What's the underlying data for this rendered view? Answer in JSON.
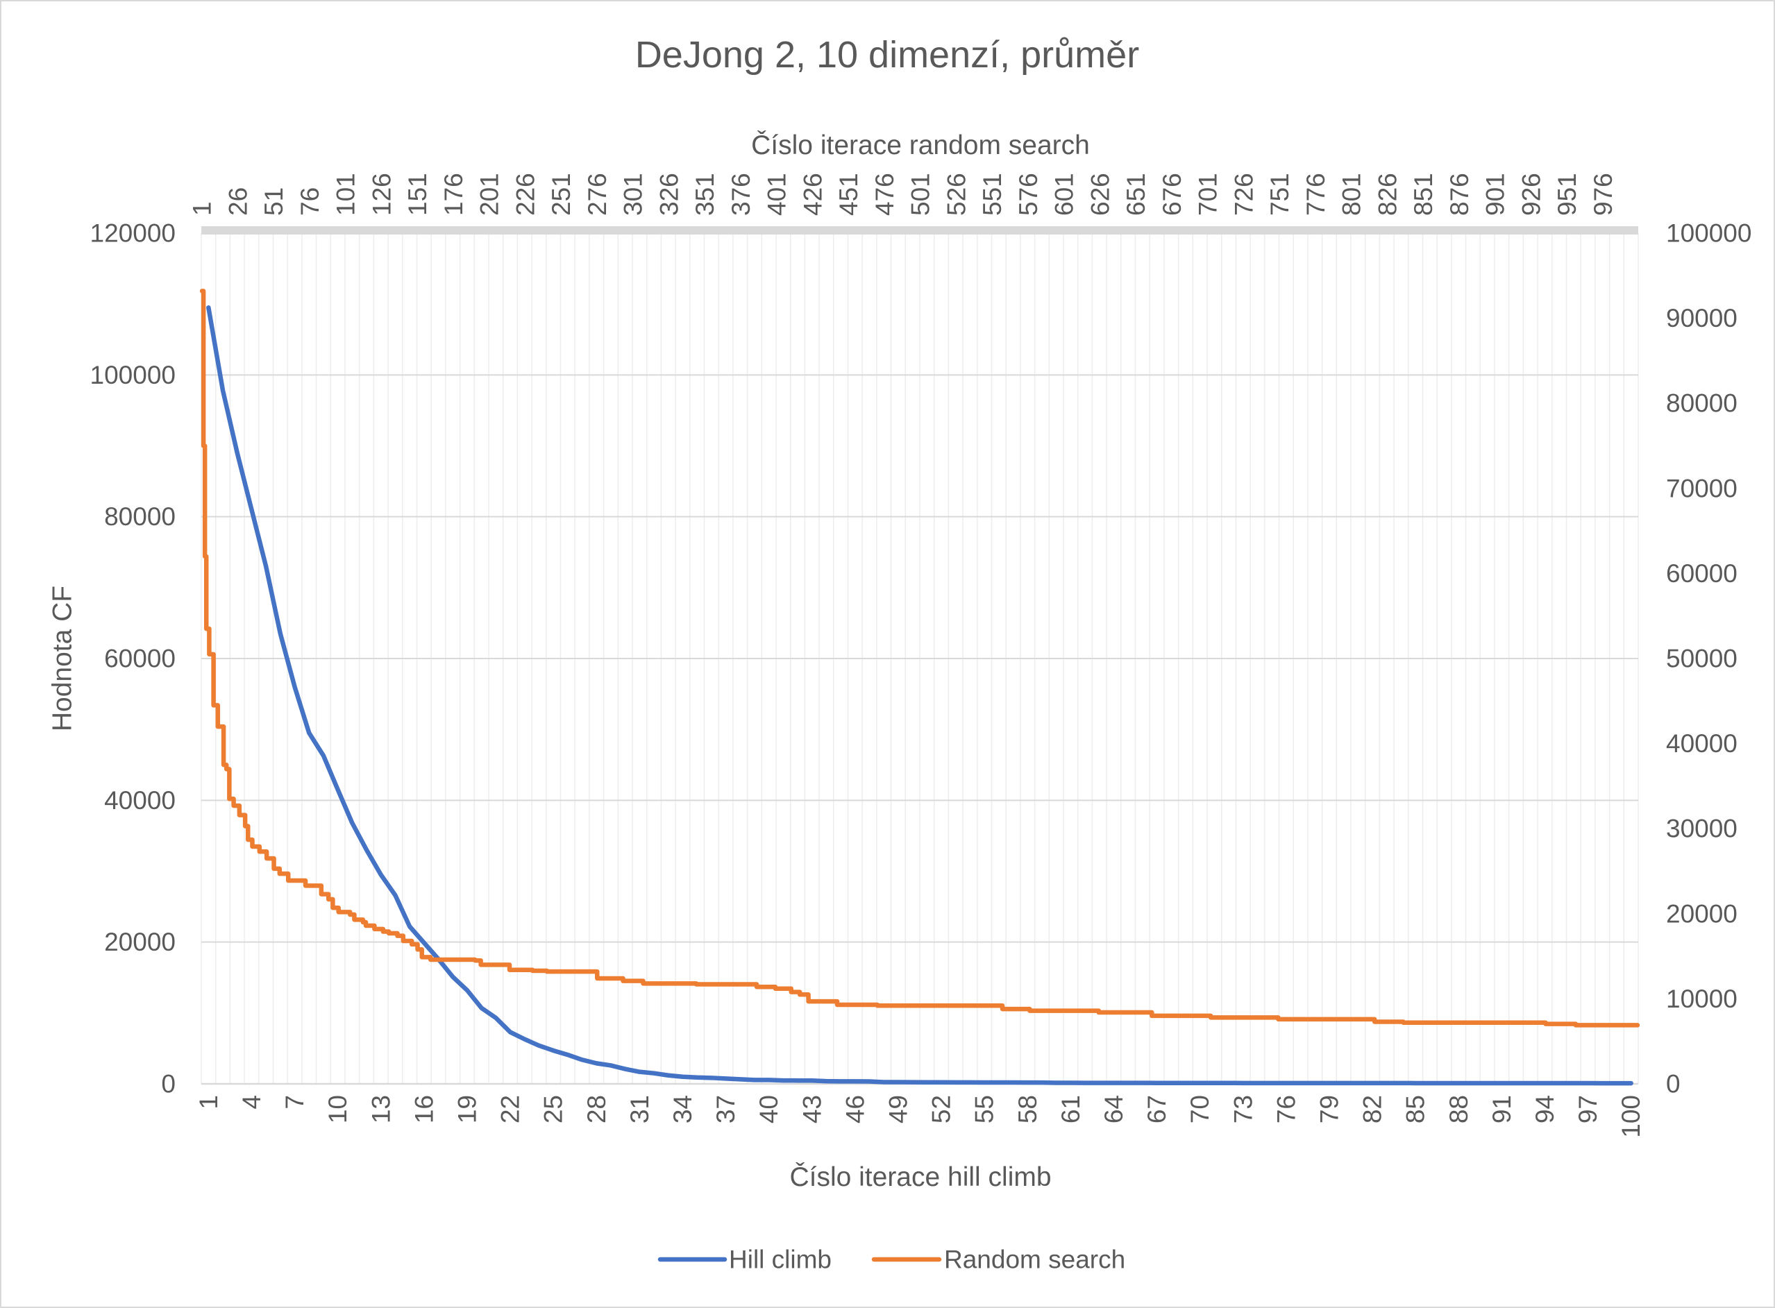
{
  "chart_data": {
    "type": "line",
    "title": "DeJong 2, 10 dimenzí, průměr",
    "x_axis_bottom": {
      "label": "Číslo iterace hill climb",
      "range": [
        1,
        100
      ],
      "ticks": [
        1,
        4,
        7,
        10,
        13,
        16,
        19,
        22,
        25,
        28,
        31,
        34,
        37,
        40,
        43,
        46,
        49,
        52,
        55,
        58,
        61,
        64,
        67,
        70,
        73,
        76,
        79,
        82,
        85,
        88,
        91,
        94,
        97,
        100
      ]
    },
    "x_axis_top": {
      "label": "Číslo iterace random search",
      "range": [
        1,
        1000
      ],
      "ticks": [
        1,
        26,
        51,
        76,
        101,
        126,
        151,
        176,
        201,
        226,
        251,
        276,
        301,
        326,
        351,
        376,
        401,
        426,
        451,
        476,
        501,
        526,
        551,
        576,
        601,
        626,
        651,
        676,
        701,
        726,
        751,
        776,
        801,
        826,
        851,
        876,
        901,
        926,
        951,
        976
      ]
    },
    "y_axis_left": {
      "label": "Hodnota CF",
      "range": [
        0,
        120000
      ],
      "ticks": [
        0,
        20000,
        40000,
        60000,
        80000,
        100000,
        120000
      ]
    },
    "y_axis_right": {
      "range": [
        0,
        100000
      ],
      "ticks": [
        0,
        10000,
        20000,
        30000,
        40000,
        50000,
        60000,
        70000,
        80000,
        90000,
        100000
      ]
    },
    "grid": true,
    "legend": {
      "position": "bottom"
    },
    "series": [
      {
        "name": "Hill climb",
        "color": "#4472C4",
        "axes": "primary",
        "x": [
          1,
          2,
          3,
          4,
          5,
          6,
          7,
          8,
          9,
          10,
          11,
          12,
          13,
          14,
          15,
          16,
          17,
          18,
          19,
          20,
          21,
          22,
          23,
          24,
          25,
          26,
          27,
          28,
          29,
          30,
          31,
          32,
          33,
          34,
          35,
          36,
          37,
          38,
          39,
          40,
          41,
          42,
          43,
          44,
          45,
          46,
          47,
          48,
          49,
          50,
          51,
          52,
          53,
          54,
          55,
          56,
          57,
          58,
          59,
          60,
          61,
          62,
          63,
          64,
          65,
          66,
          67,
          68,
          69,
          70,
          71,
          72,
          73,
          74,
          75,
          76,
          77,
          78,
          79,
          80,
          81,
          82,
          83,
          84,
          85,
          86,
          87,
          88,
          89,
          90,
          91,
          92,
          93,
          94,
          95,
          96,
          97,
          98,
          99,
          100
        ],
        "y": [
          109500,
          97800,
          89000,
          81000,
          73000,
          63500,
          56000,
          49500,
          46300,
          41500,
          36800,
          33000,
          29500,
          26600,
          22200,
          19900,
          17600,
          15100,
          13200,
          10700,
          9300,
          7300,
          6300,
          5400,
          4700,
          4100,
          3400,
          2900,
          2600,
          2100,
          1700,
          1500,
          1200,
          1000,
          900,
          850,
          750,
          650,
          550,
          550,
          480,
          470,
          460,
          380,
          360,
          350,
          340,
          250,
          240,
          230,
          220,
          215,
          210,
          205,
          200,
          195,
          190,
          185,
          180,
          150,
          145,
          140,
          138,
          135,
          132,
          130,
          128,
          126,
          124,
          122,
          120,
          118,
          116,
          115,
          114,
          113,
          112,
          111,
          110,
          109,
          108,
          107,
          106,
          105,
          104,
          103,
          102,
          101,
          100,
          99,
          98,
          97,
          96,
          95,
          94,
          93,
          92,
          91,
          90,
          89
        ]
      },
      {
        "name": "Random search",
        "color": "#ED7D31",
        "axes": "secondary",
        "line_shape": "step",
        "x": [
          1,
          2,
          3,
          4,
          6,
          9,
          12,
          16,
          18,
          20,
          23,
          27,
          31,
          33,
          36,
          41,
          46,
          51,
          55,
          61,
          73,
          84,
          89,
          92,
          96,
          104,
          107,
          113,
          115,
          121,
          127,
          131,
          137,
          141,
          147,
          151,
          154,
          160,
          191,
          195,
          215,
          231,
          241,
          276,
          294,
          308,
          345,
          387,
          400,
          411,
          417,
          423,
          443,
          471,
          558,
          577,
          625,
          662,
          703,
          750,
          817,
          837,
          936,
          957,
          1000
        ],
        "y": [
          93200,
          75000,
          62000,
          53500,
          50500,
          44500,
          42000,
          37500,
          37000,
          33500,
          32700,
          31600,
          30300,
          28700,
          27900,
          27300,
          26500,
          25300,
          24700,
          23900,
          23300,
          22300,
          21700,
          20700,
          20200,
          19900,
          19300,
          19000,
          18600,
          18200,
          17900,
          17700,
          17400,
          16800,
          16400,
          15800,
          14900,
          14600,
          14500,
          14000,
          13400,
          13300,
          13200,
          12400,
          12100,
          11800,
          11700,
          11400,
          11200,
          10800,
          10500,
          9700,
          9300,
          9200,
          8800,
          8600,
          8400,
          8000,
          7800,
          7600,
          7300,
          7200,
          7050,
          6900,
          6900
        ]
      }
    ]
  },
  "colors": {
    "text": "#595959",
    "gridline": "#D9D9D9",
    "category_line": "#EDEDED",
    "background": "#FFFFFF"
  }
}
